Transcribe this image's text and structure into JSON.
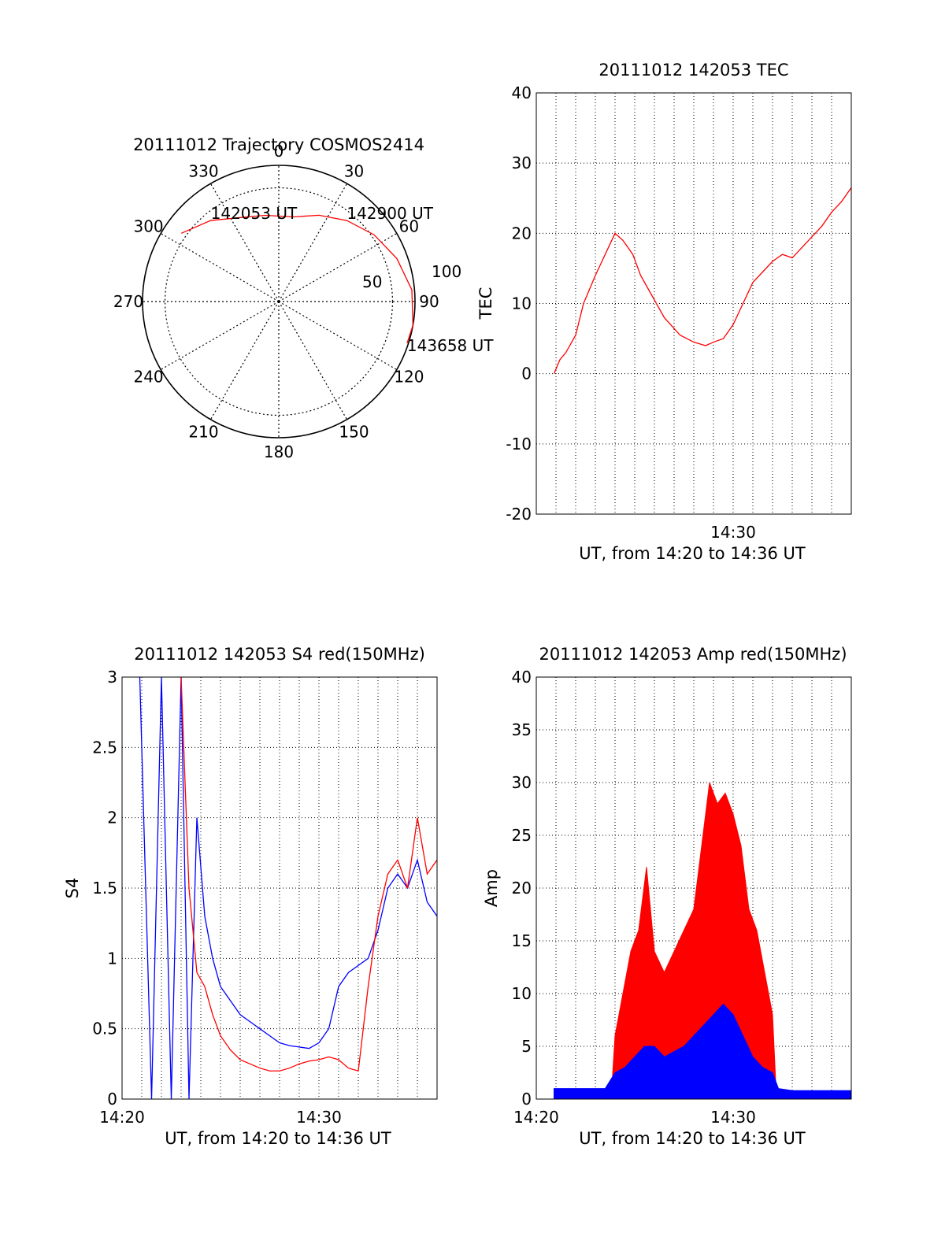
{
  "chart_data": [
    {
      "type": "polar",
      "title": "20111012 Trajectory COSMOS2414",
      "azimuth_labels": [
        "0",
        "30",
        "60",
        "90",
        "120",
        "150",
        "180",
        "210",
        "240",
        "270",
        "300",
        "330"
      ],
      "elevation_ring_labels": [
        "50",
        "100"
      ],
      "series": [
        {
          "color": "#ff0000",
          "points": [
            {
              "az": 305,
              "zen": 90
            },
            {
              "az": 320,
              "zen": 80
            },
            {
              "az": 335,
              "zen": 70
            },
            {
              "az": 351,
              "zen": 66
            },
            {
              "az": 10,
              "zen": 65
            },
            {
              "az": 25,
              "zen": 72
            },
            {
              "az": 40,
              "zen": 80
            },
            {
              "az": 55,
              "zen": 88
            },
            {
              "az": 70,
              "zen": 95
            },
            {
              "az": 85,
              "zen": 101
            },
            {
              "az": 100,
              "zen": 103
            },
            {
              "az": 108,
              "zen": 102
            }
          ]
        }
      ],
      "annotations": [
        {
          "text": "142053 UT",
          "az": 320,
          "zen": 80
        },
        {
          "text": "142900 UT",
          "az": 40,
          "zen": 80
        },
        {
          "text": "143658 UT",
          "az": 108,
          "zen": 102
        }
      ]
    },
    {
      "type": "line",
      "title": "20111012 142053 TEC",
      "xlabel": "UT, from 14:20 to 14:36 UT",
      "ylabel": "TEC",
      "xlim": [
        20.0,
        36.0
      ],
      "ylim": [
        -20,
        40
      ],
      "yticks": [
        "-20",
        "-10",
        "0",
        "10",
        "20",
        "30",
        "40"
      ],
      "xticks": [
        {
          "x": 30,
          "label": "14:30"
        }
      ],
      "grid": true,
      "series": [
        {
          "color": "#ff0000",
          "x": [
            20.9,
            21.2,
            21.5,
            22.0,
            22.4,
            23.0,
            23.5,
            24.0,
            24.4,
            24.9,
            25.3,
            25.8,
            26.5,
            27.3,
            28.0,
            28.6,
            29.0,
            29.5,
            30.0,
            30.5,
            31.0,
            31.5,
            32.0,
            32.5,
            33.0,
            33.5,
            34.0,
            34.5,
            35.0,
            35.5,
            36.0
          ],
          "y": [
            0.0,
            2.0,
            3.0,
            5.5,
            10.0,
            14.0,
            17.0,
            20.0,
            19.0,
            17.0,
            14.0,
            11.5,
            8.0,
            5.5,
            4.5,
            4.0,
            4.5,
            5.0,
            7.0,
            10.0,
            13.0,
            14.5,
            16.0,
            17.0,
            16.5,
            18.0,
            19.5,
            21.0,
            23.0,
            24.5,
            26.5
          ]
        }
      ]
    },
    {
      "type": "line",
      "title": "20111012 142053 S4 red(150MHz)",
      "xlabel": "UT, from 14:20 to 14:36 UT",
      "ylabel": "S4",
      "xlim": [
        20.0,
        36.0
      ],
      "ylim": [
        0,
        3
      ],
      "yticks": [
        "0",
        "0.5",
        "1",
        "1.5",
        "2",
        "2.5",
        "3"
      ],
      "xticks": [
        {
          "x": 20,
          "label": "14:20"
        },
        {
          "x": 30,
          "label": "14:30"
        }
      ],
      "grid": true,
      "series": [
        {
          "color": "#0000ff",
          "x": [
            20.9,
            21.5,
            22.0,
            22.5,
            23.0,
            23.4,
            23.8,
            24.2,
            24.6,
            25.0,
            25.5,
            26.0,
            26.5,
            27.0,
            27.5,
            28.0,
            28.5,
            29.0,
            29.5,
            30.0,
            30.5,
            31.0,
            31.5,
            32.0,
            32.5,
            33.0,
            33.5,
            34.0,
            34.5,
            35.0,
            35.5,
            36.0
          ],
          "y": [
            3.0,
            0.0,
            3.0,
            0.0,
            3.0,
            0.0,
            2.0,
            1.3,
            1.0,
            0.8,
            0.7,
            0.6,
            0.55,
            0.5,
            0.45,
            0.4,
            0.38,
            0.37,
            0.36,
            0.4,
            0.5,
            0.8,
            0.9,
            0.95,
            1.0,
            1.2,
            1.5,
            1.6,
            1.5,
            1.7,
            1.4,
            1.3
          ]
        },
        {
          "color": "#ff0000",
          "x": [
            23.0,
            23.4,
            23.8,
            24.2,
            24.6,
            25.0,
            25.5,
            26.0,
            26.5,
            27.0,
            27.5,
            28.0,
            28.5,
            29.0,
            29.5,
            30.0,
            30.5,
            31.0,
            31.5,
            32.0,
            32.5,
            33.0,
            33.5,
            34.0,
            34.5,
            35.0,
            35.5,
            36.0
          ],
          "y": [
            3.0,
            1.5,
            0.9,
            0.8,
            0.6,
            0.45,
            0.35,
            0.28,
            0.25,
            0.22,
            0.2,
            0.2,
            0.22,
            0.25,
            0.27,
            0.28,
            0.3,
            0.28,
            0.22,
            0.2,
            0.8,
            1.3,
            1.6,
            1.7,
            1.5,
            2.0,
            1.6,
            1.7
          ]
        }
      ]
    },
    {
      "type": "area",
      "title": "20111012 142053 Amp red(150MHz)",
      "xlabel": "UT, from 14:20 to 14:36 UT",
      "ylabel": "Amp",
      "xlim": [
        20.0,
        36.0
      ],
      "ylim": [
        0,
        40
      ],
      "yticks": [
        "0",
        "5",
        "10",
        "15",
        "20",
        "25",
        "30",
        "35",
        "40"
      ],
      "xticks": [
        {
          "x": 20,
          "label": "14:20"
        },
        {
          "x": 30,
          "label": "14:30"
        }
      ],
      "grid": true,
      "series": [
        {
          "color": "#ff0000",
          "x": [
            23.8,
            24.0,
            24.4,
            24.8,
            25.2,
            25.6,
            26.0,
            26.5,
            27.0,
            27.5,
            28.0,
            28.4,
            28.8,
            29.2,
            29.6,
            30.0,
            30.4,
            30.8,
            31.2,
            31.6,
            32.0,
            32.2
          ],
          "y": [
            0,
            6,
            10,
            14,
            16,
            22,
            14,
            12,
            14,
            16,
            18,
            24,
            30,
            28,
            29,
            27,
            24,
            18,
            16,
            12,
            8,
            0
          ]
        },
        {
          "color": "#0000ff",
          "x": [
            20.9,
            23.5,
            24.0,
            24.5,
            25.0,
            25.5,
            26.0,
            26.5,
            27.0,
            27.5,
            28.0,
            28.5,
            29.0,
            29.5,
            30.0,
            30.5,
            31.0,
            31.5,
            32.0,
            32.3,
            33.0,
            34.0,
            35.0,
            36.0
          ],
          "y": [
            1.0,
            1.0,
            2.5,
            3.0,
            4.0,
            5.0,
            5.0,
            4.0,
            4.5,
            5.0,
            6.0,
            7.0,
            8.0,
            9.0,
            8.0,
            6.0,
            4.0,
            3.0,
            2.5,
            1.0,
            0.8,
            0.8,
            0.8,
            0.8
          ]
        }
      ]
    }
  ]
}
